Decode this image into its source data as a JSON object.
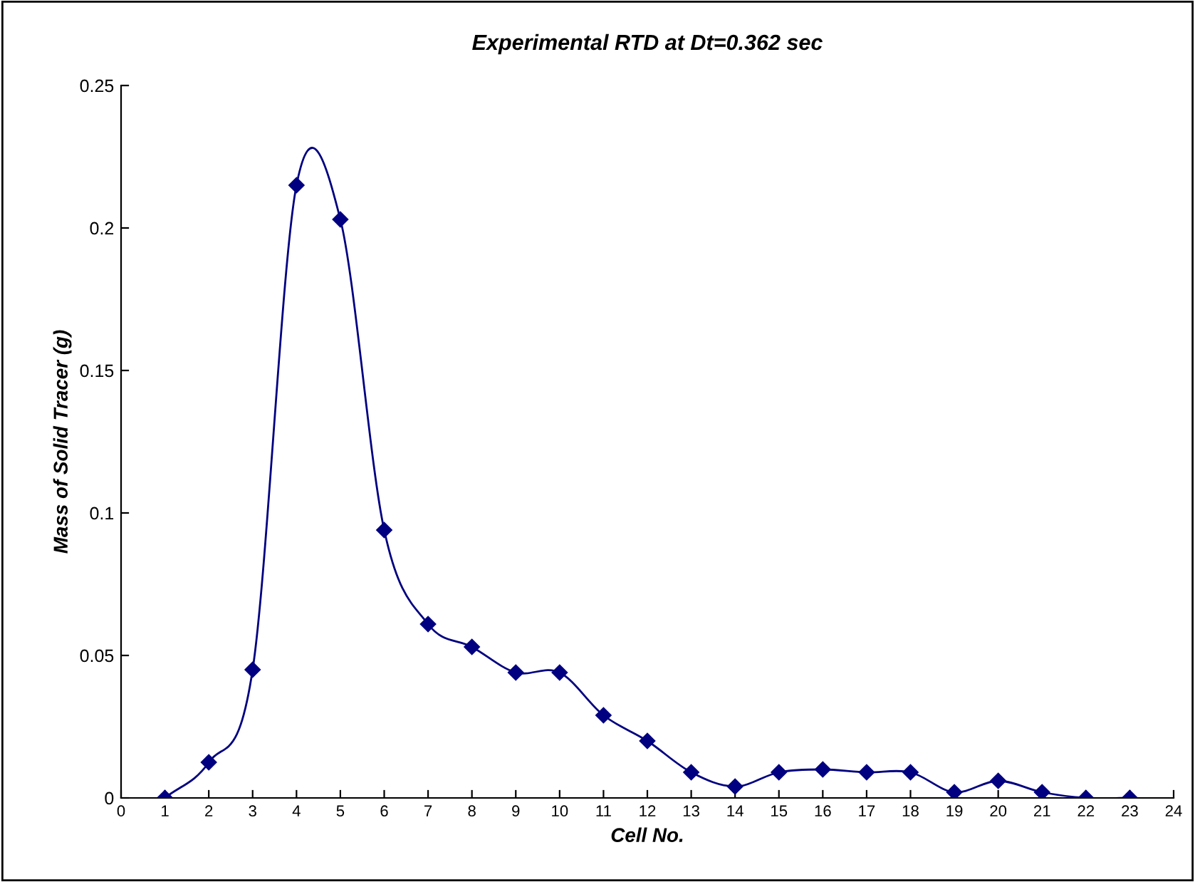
{
  "chart_data": {
    "type": "line",
    "title": "Experimental RTD at Dt=0.362 sec",
    "xlabel": "Cell No.",
    "ylabel": "Mass of Solid Tracer (g)",
    "x": [
      1,
      2,
      3,
      4,
      5,
      6,
      7,
      8,
      9,
      10,
      11,
      12,
      13,
      14,
      15,
      16,
      17,
      18,
      19,
      20,
      21,
      22,
      23
    ],
    "series": [
      {
        "color": "#000080",
        "values": [
          0,
          0.0125,
          0.045,
          0.215,
          0.203,
          0.094,
          0.061,
          0.053,
          0.044,
          0.044,
          0.029,
          0.02,
          0.009,
          0.004,
          0.009,
          0.01,
          0.009,
          0.009,
          0.002,
          0.006,
          0.002,
          0,
          0
        ]
      }
    ],
    "xlim": [
      0,
      24
    ],
    "xticks": [
      0,
      1,
      2,
      3,
      4,
      5,
      6,
      7,
      8,
      9,
      10,
      11,
      12,
      13,
      14,
      15,
      16,
      17,
      18,
      19,
      20,
      21,
      22,
      23,
      24
    ],
    "ylim": [
      0,
      0.25
    ],
    "yticks": [
      0,
      0.05,
      0.1,
      0.15,
      0.2,
      0.25
    ],
    "marker": "diamond",
    "line_style": "solid",
    "grid": false
  }
}
